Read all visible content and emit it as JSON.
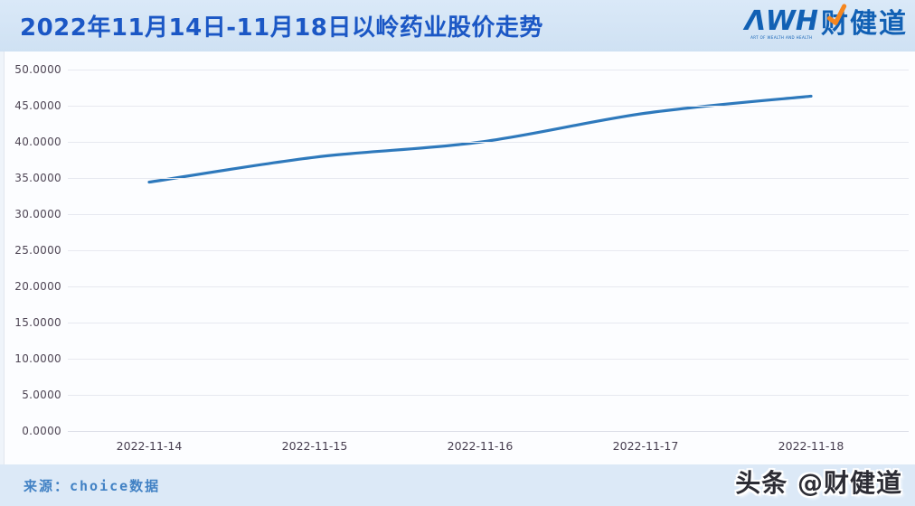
{
  "header": {
    "title": "2022年11月14日-11月18日以岭药业股价走势",
    "logo": {
      "awh": "ΛWH",
      "cn": "财健道",
      "tagline": "ART OF WEALTH AND HEALTH",
      "brand_blue": "#1160b4",
      "accent_orange": "#f5861f"
    }
  },
  "chart_data": {
    "type": "line",
    "title": "2022年11月14日-11月18日以岭药业股价走势",
    "categories": [
      "2022-11-14",
      "2022-11-15",
      "2022-11-16",
      "2022-11-17",
      "2022-11-18"
    ],
    "values": [
      34.43,
      37.87,
      39.97,
      43.97,
      46.32
    ],
    "xlabel": "",
    "ylabel": "",
    "ylim": [
      0,
      50
    ],
    "yticks": [
      "0.0000",
      "5.0000",
      "10.0000",
      "15.0000",
      "20.0000",
      "25.0000",
      "30.0000",
      "35.0000",
      "40.0000",
      "45.0000",
      "50.0000"
    ],
    "grid": true,
    "legend": "none",
    "line_color": "#2e79bc",
    "grid_color": "#e7e9f0",
    "tick_color": "#4e4554"
  },
  "footer": {
    "source": "来源：choice数据",
    "watermark": "头条 @财健道"
  }
}
